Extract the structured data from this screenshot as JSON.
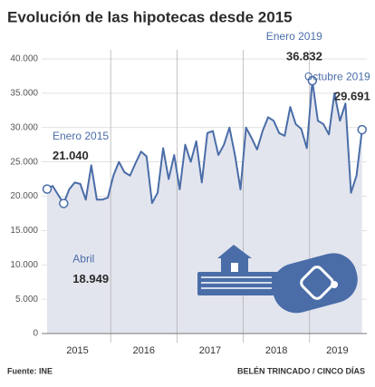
{
  "chart_data": {
    "type": "area",
    "title": "Evolución de las hipotecas desde 2015",
    "source": "Fuente: INE",
    "credit": "BELÉN TRINCADO / CINCO DÍAS",
    "year_labels": [
      "2015",
      "2016",
      "2017",
      "2018",
      "2019"
    ],
    "color": "#4a6da8",
    "fill": "#e3e5ee",
    "values": [
      21040,
      21500,
      20200,
      18949,
      21000,
      22000,
      21800,
      19500,
      24500,
      19500,
      19500,
      19800,
      23000,
      25000,
      23500,
      23000,
      24800,
      26500,
      25800,
      19000,
      20500,
      27000,
      22500,
      26000,
      21000,
      27500,
      25000,
      28000,
      22000,
      29200,
      29500,
      26000,
      27500,
      30000,
      26000,
      21000,
      30000,
      28500,
      26800,
      29500,
      31500,
      31000,
      29200,
      28800,
      33000,
      30500,
      29800,
      27000,
      36832,
      31000,
      30500,
      29000,
      35000,
      31000,
      33500,
      20500,
      23000,
      29691
    ],
    "point_labels": [
      "Enero 2015",
      null,
      null,
      "Abril",
      null,
      null,
      null,
      null,
      null,
      null,
      null,
      null,
      null,
      null,
      null,
      null,
      null,
      null,
      null,
      null,
      null,
      null,
      null,
      null,
      null,
      null,
      null,
      null,
      null,
      null,
      null,
      null,
      null,
      null,
      null,
      null,
      null,
      null,
      null,
      null,
      null,
      null,
      null,
      null,
      null,
      null,
      null,
      null,
      "Enero 2019",
      null,
      null,
      null,
      null,
      null,
      null,
      null,
      null,
      "Octubre 2019"
    ],
    "value_labels": [
      "21.040",
      null,
      null,
      "18.949",
      null,
      null,
      null,
      null,
      null,
      null,
      null,
      null,
      null,
      null,
      null,
      null,
      null,
      null,
      null,
      null,
      null,
      null,
      null,
      null,
      null,
      null,
      null,
      null,
      null,
      null,
      null,
      null,
      null,
      null,
      null,
      null,
      null,
      null,
      null,
      null,
      null,
      null,
      null,
      null,
      null,
      null,
      null,
      null,
      "36.832",
      null,
      null,
      null,
      null,
      null,
      null,
      null,
      null,
      "29.691"
    ],
    "ylim": [
      0,
      40000
    ],
    "yticks": [
      0,
      {
        "value": 5000,
        "label": "5.000"
      },
      {
        "value": 10000,
        "label": "10.000"
      },
      {
        "value": 15000,
        "label": "15.000"
      },
      {
        "value": 20000,
        "label": "20.000"
      },
      {
        "value": 25000,
        "label": "25.000"
      },
      {
        "value": 30000,
        "label": "30.000"
      },
      {
        "value": 35000,
        "label": "35.000"
      },
      {
        "value": 40000,
        "label": "40.000"
      }
    ],
    "grid": true
  }
}
